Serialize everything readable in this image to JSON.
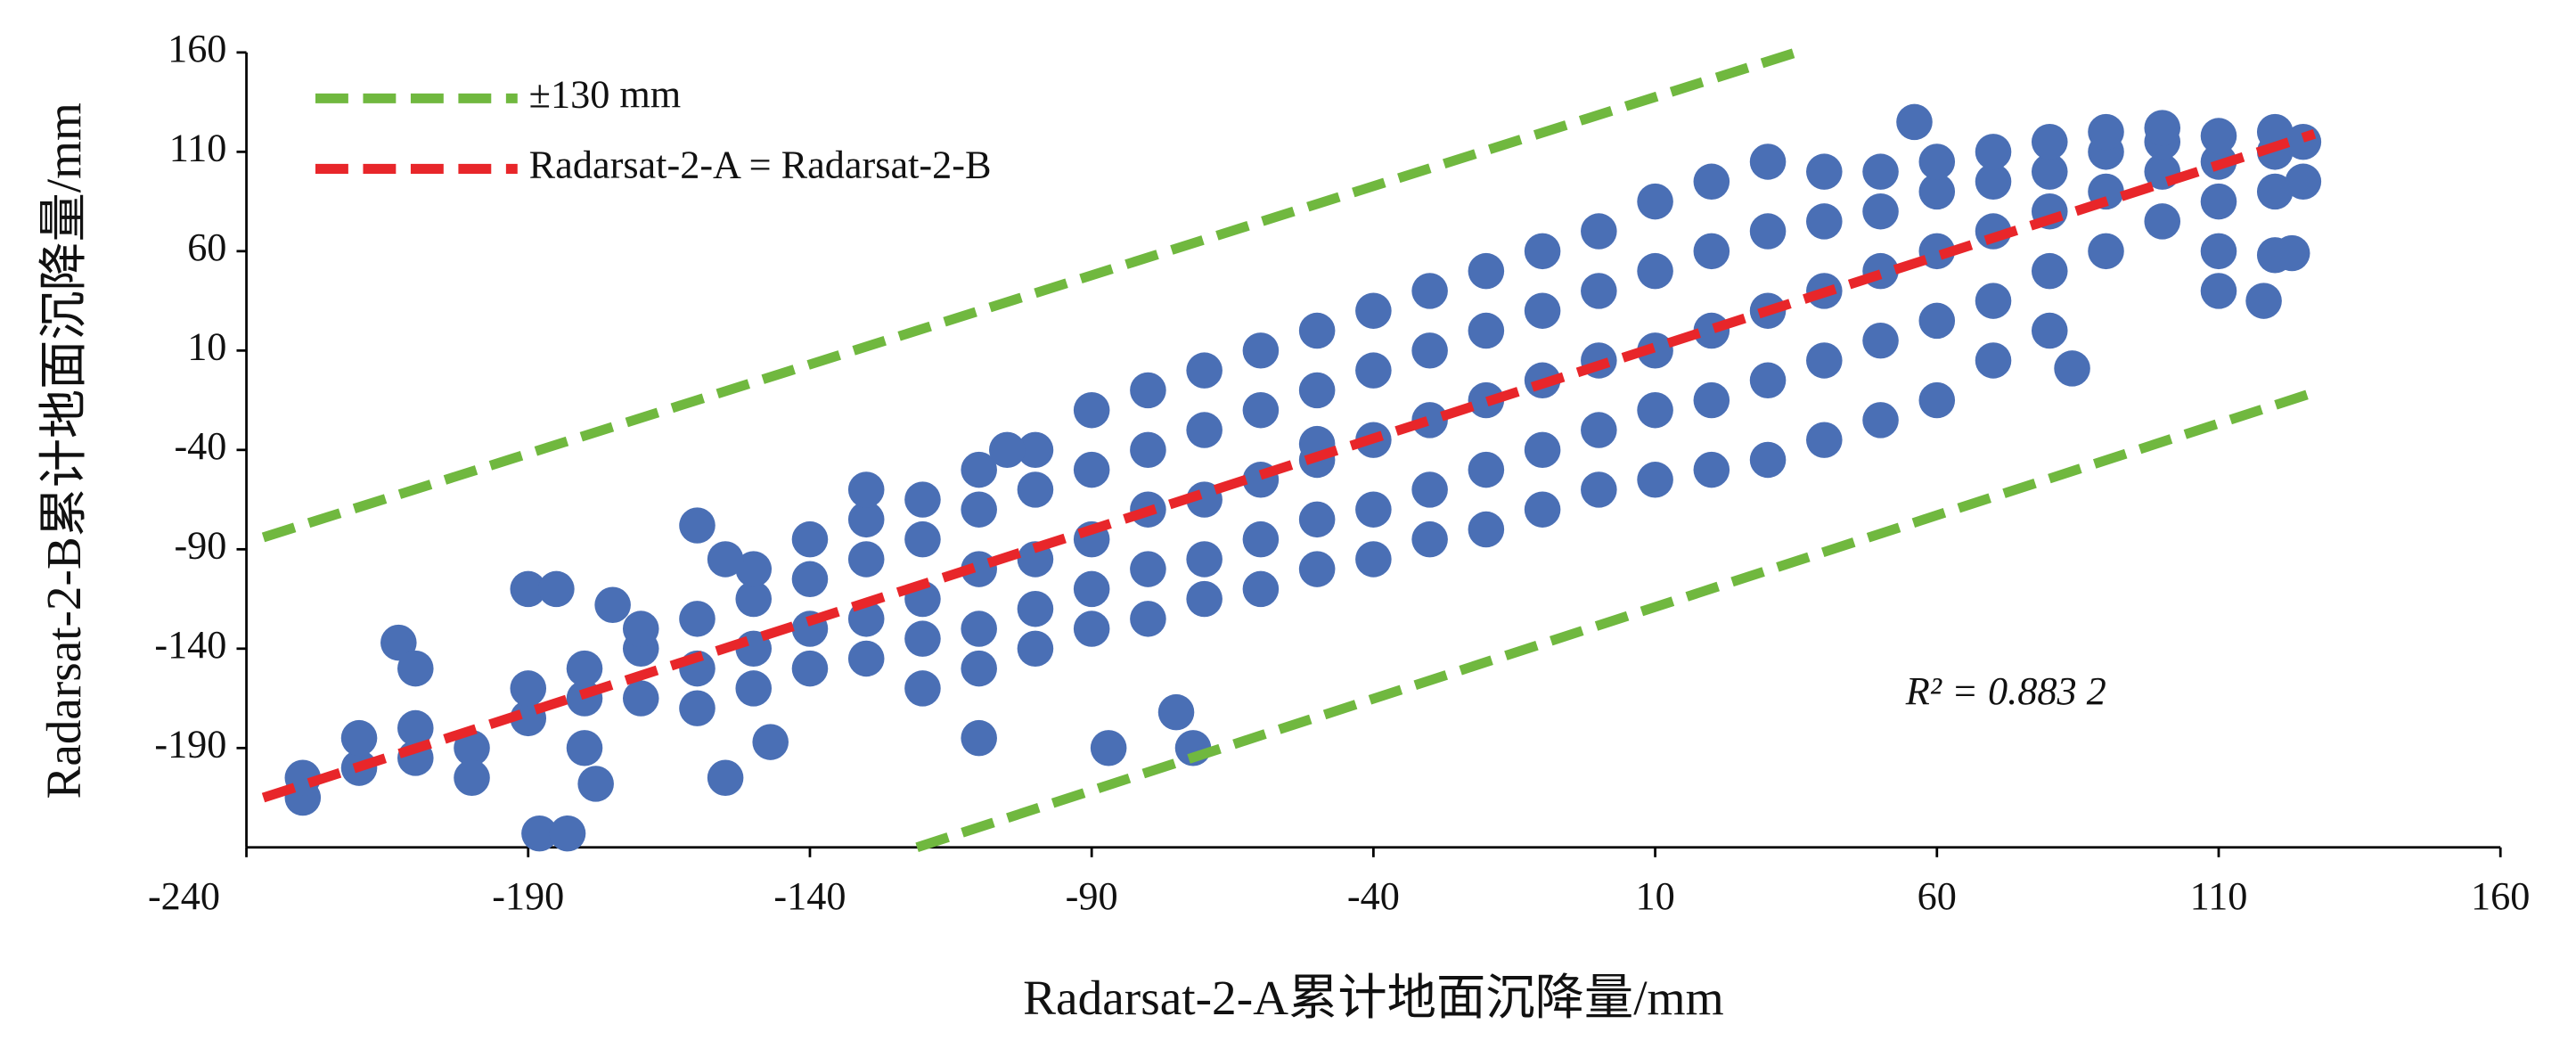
{
  "chart_data": {
    "type": "scatter",
    "x_label": "Radarsat-2-A累计地面沉降量/mm",
    "y_label": "Radarsat-2-B累计地面沉降量/mm",
    "annotation": "R² = 0.883 2",
    "xlim": [
      -240,
      160
    ],
    "ylim": [
      -240,
      160
    ],
    "xticks": [
      -240,
      -190,
      -140,
      -90,
      -40,
      10,
      60,
      110,
      160
    ],
    "yticks": [
      -190,
      -140,
      -90,
      -40,
      10,
      60,
      110,
      160
    ],
    "legend": "upper left",
    "points": {
      "color": "#4a6fb5",
      "x": [
        -230,
        -230,
        -220,
        -220,
        -210,
        -210,
        -200,
        -200,
        -190,
        -190,
        -180,
        -180,
        -180,
        -170,
        -170,
        -170,
        -160,
        -160,
        -160,
        -150,
        -150,
        -150,
        -150,
        -140,
        -140,
        -140,
        -140,
        -130,
        -130,
        -130,
        -130,
        -120,
        -120,
        -120,
        -120,
        -120,
        -110,
        -110,
        -110,
        -110,
        -110,
        -100,
        -100,
        -100,
        -100,
        -100,
        -90,
        -90,
        -90,
        -90,
        -90,
        -80,
        -80,
        -80,
        -80,
        -80,
        -70,
        -70,
        -70,
        -70,
        -70,
        -60,
        -60,
        -60,
        -60,
        -60,
        -50,
        -50,
        -50,
        -50,
        -50,
        -40,
        -40,
        -40,
        -40,
        -40,
        -30,
        -30,
        -30,
        -30,
        -30,
        -20,
        -20,
        -20,
        -20,
        -20,
        -10,
        -10,
        -10,
        -10,
        -10,
        0,
        0,
        0,
        0,
        0,
        10,
        10,
        10,
        10,
        10,
        20,
        20,
        20,
        20,
        20,
        30,
        30,
        30,
        30,
        30,
        40,
        40,
        40,
        40,
        40,
        50,
        50,
        50,
        50,
        50,
        60,
        60,
        60,
        60,
        60,
        70,
        70,
        70,
        70,
        70,
        80,
        80,
        80,
        80,
        80,
        90,
        90,
        90,
        90,
        100,
        100,
        100,
        100,
        110,
        110,
        110,
        110,
        120,
        120,
        120,
        120,
        125,
        125,
        -213,
        -210,
        -190,
        -185,
        -175,
        -188,
        -183,
        -178,
        -155,
        -147,
        -155,
        -160,
        -130,
        -105,
        -50,
        -87,
        -110,
        -75,
        -72,
        56,
        123,
        84,
        110,
        118
      ],
      "y": [
        -215,
        -205,
        -200,
        -185,
        -195,
        -180,
        -190,
        -205,
        -175,
        -160,
        -165,
        -150,
        -190,
        -165,
        -140,
        -130,
        -150,
        -125,
        -170,
        -140,
        -115,
        -160,
        -100,
        -130,
        -105,
        -150,
        -85,
        -125,
        -95,
        -145,
        -75,
        -115,
        -85,
        -135,
        -65,
        -160,
        -100,
        -70,
        -130,
        -50,
        -150,
        -95,
        -60,
        -120,
        -40,
        -140,
        -85,
        -50,
        -110,
        -20,
        -130,
        -70,
        -40,
        -100,
        -10,
        -125,
        -65,
        -30,
        -95,
        0,
        -115,
        -55,
        -20,
        -85,
        10,
        -110,
        -45,
        -10,
        -75,
        20,
        -100,
        -35,
        0,
        -70,
        30,
        -95,
        -25,
        10,
        -60,
        40,
        -85,
        -15,
        20,
        -50,
        50,
        -80,
        -5,
        30,
        -40,
        60,
        -70,
        5,
        40,
        -30,
        70,
        -60,
        10,
        50,
        -20,
        85,
        -55,
        20,
        60,
        -15,
        95,
        -50,
        30,
        70,
        -5,
        105,
        -45,
        40,
        75,
        5,
        100,
        -35,
        50,
        80,
        15,
        100,
        -25,
        60,
        90,
        25,
        105,
        -15,
        70,
        95,
        35,
        110,
        5,
        80,
        100,
        50,
        115,
        20,
        90,
        110,
        60,
        120,
        100,
        115,
        75,
        122,
        105,
        118,
        85,
        60,
        110,
        120,
        90,
        58,
        115,
        95,
        -137,
        -150,
        -110,
        -110,
        -118,
        -233,
        -233,
        -208,
        -205,
        -187,
        -95,
        -78,
        -60,
        -40,
        -37,
        -190,
        -185,
        -172,
        -190,
        125,
        59,
        1,
        40,
        35
      ]
    },
    "series": [
      {
        "name": "±130 mm",
        "color": "#70b83f",
        "x": [
          -237,
          35,
          null,
          -121,
          127
        ],
        "y": [
          -84,
          160,
          null,
          -240,
          -11
        ]
      },
      {
        "name": "Radarsat-2-A = Radarsat-2-B",
        "color": "#e8262a",
        "x": [
          -237,
          127
        ],
        "y": [
          -215,
          119
        ]
      }
    ]
  }
}
